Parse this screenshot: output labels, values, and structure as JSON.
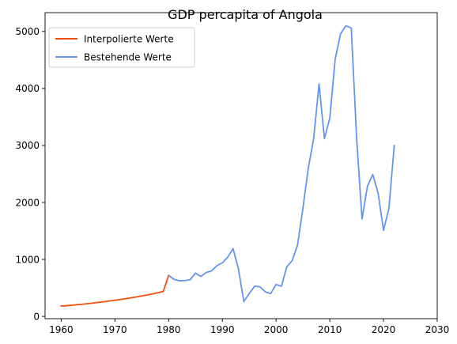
{
  "chart_data": {
    "type": "line",
    "title": "GDP percapita of Angola",
    "xlabel": "",
    "ylabel": "",
    "xlim": [
      1957,
      2030
    ],
    "ylim": [
      -40,
      5330
    ],
    "xticks": [
      1960,
      1970,
      1980,
      1990,
      2000,
      2010,
      2020,
      2030
    ],
    "yticks": [
      0,
      1000,
      2000,
      3000,
      4000,
      5000
    ],
    "grid": false,
    "legend_position": "top-left",
    "series": [
      {
        "name": "Interpolierte Werte",
        "color": "#f0500f",
        "x": [
          1960,
          1961,
          1962,
          1963,
          1964,
          1965,
          1966,
          1967,
          1968,
          1969,
          1970,
          1971,
          1972,
          1973,
          1974,
          1975,
          1976,
          1977,
          1978,
          1979,
          1980
        ],
        "y": [
          180,
          188,
          197,
          206,
          215,
          225,
          236,
          247,
          258,
          270,
          283,
          297,
          311,
          326,
          342,
          359,
          377,
          396,
          416,
          437,
          720
        ]
      },
      {
        "name": "Bestehende Werte",
        "color": "#6495ed",
        "x": [
          1980,
          1981,
          1982,
          1983,
          1984,
          1985,
          1986,
          1987,
          1988,
          1989,
          1990,
          1991,
          1992,
          1993,
          1994,
          1995,
          1996,
          1997,
          1998,
          1999,
          2000,
          2001,
          2002,
          2003,
          2004,
          2005,
          2006,
          2007,
          2008,
          2009,
          2010,
          2011,
          2012,
          2013,
          2014,
          2015,
          2016,
          2017,
          2018,
          2019,
          2020,
          2021,
          2022
        ],
        "y": [
          720,
          650,
          625,
          630,
          645,
          760,
          700,
          770,
          800,
          890,
          940,
          1040,
          1190,
          830,
          260,
          400,
          530,
          520,
          430,
          400,
          560,
          530,
          870,
          980,
          1250,
          1900,
          2600,
          3120,
          4080,
          3120,
          3480,
          4510,
          4960,
          5100,
          5060,
          3120,
          1710,
          2280,
          2490,
          2160,
          1510,
          1890,
          3000
        ]
      }
    ]
  }
}
